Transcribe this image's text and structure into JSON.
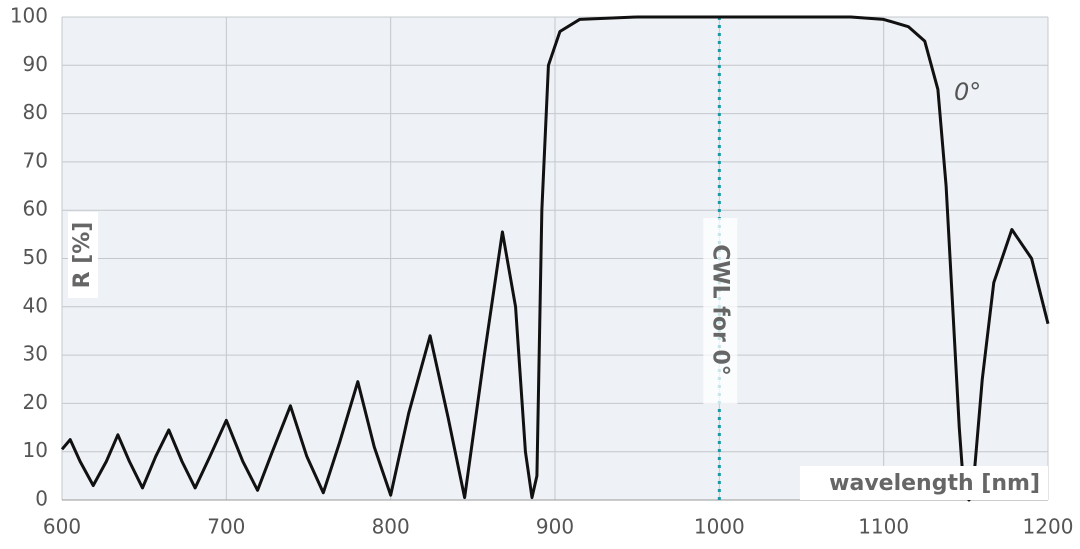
{
  "chart_data": {
    "type": "line",
    "ylabel": "R [%]",
    "xlabel": "wavelength [nm]",
    "reference_line": {
      "x": 1000,
      "label": "CWL for 0°",
      "color": "#1a98a6"
    },
    "series": [
      {
        "name": "0°",
        "color": "#111111",
        "x": [
          600,
          605,
          611,
          619,
          627,
          634,
          641,
          649,
          657,
          665,
          673,
          681,
          690,
          700,
          710,
          719,
          728,
          739,
          749,
          759,
          769,
          780,
          790,
          800,
          811,
          824,
          835,
          845,
          857,
          868,
          876,
          882,
          886,
          889,
          892,
          896,
          903,
          915,
          950,
          1000,
          1080,
          1100,
          1115,
          1125,
          1133,
          1138,
          1142,
          1146,
          1149,
          1152,
          1155,
          1160,
          1167,
          1178,
          1190,
          1200
        ],
        "values": [
          10.5,
          12.5,
          8,
          3,
          8,
          13.5,
          8,
          2.5,
          9,
          14.5,
          8,
          2.5,
          9,
          16.5,
          8,
          2,
          10,
          19.5,
          9,
          1.5,
          12,
          24.5,
          11,
          1,
          18,
          34,
          17,
          0.5,
          30,
          55.5,
          40,
          10,
          0.5,
          5,
          60,
          90,
          97,
          99.5,
          100,
          100,
          100,
          99.5,
          98,
          95,
          85,
          65,
          40,
          15,
          1,
          0,
          5,
          25,
          45,
          56,
          50,
          36.5
        ]
      }
    ],
    "xlim": [
      600,
      1200
    ],
    "xticks": [
      600,
      700,
      800,
      900,
      1000,
      1100,
      1200
    ],
    "ylim": [
      0,
      100
    ],
    "yticks": [
      0,
      10,
      20,
      30,
      40,
      50,
      60,
      70,
      80,
      90,
      100
    ],
    "grid": true
  }
}
